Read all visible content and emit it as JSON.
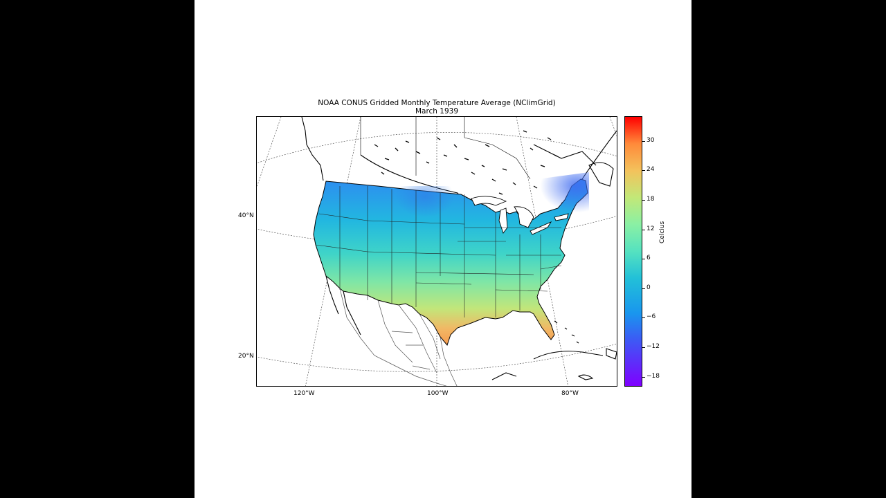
{
  "title": "NOAA CONUS Gridded Monthly Temperature Average (NClimGrid)",
  "subtitle": "March  1939",
  "lat_labels": [
    "40°N",
    "20°N"
  ],
  "lon_labels": [
    "120°W",
    "100°W",
    "80°W"
  ],
  "colorbar": {
    "label": "Celcius",
    "ticks": [
      "30",
      "24",
      "18",
      "12",
      "6",
      "0",
      "−6",
      "−12",
      "−18"
    ],
    "range": [
      -20,
      35
    ],
    "colormap": "rainbow"
  },
  "colors": {
    "cold": "#3d7cf0",
    "cool": "#22c0d8",
    "mild": "#6fe3b0",
    "warm": "#f3a05a"
  }
}
